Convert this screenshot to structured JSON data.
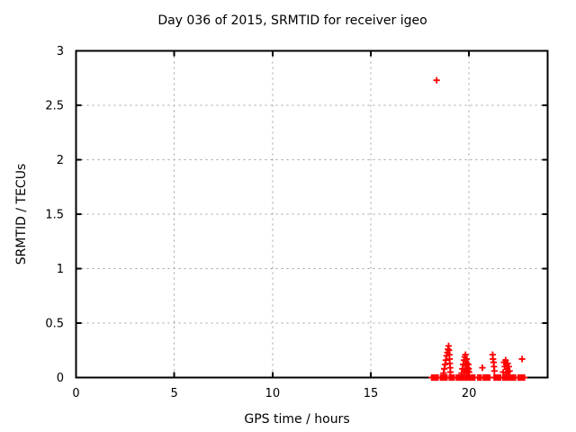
{
  "chart_data": {
    "type": "scatter",
    "title": "Day 036 of 2015, SRMTID for receiver igeo",
    "xlabel": "GPS time / hours",
    "ylabel": "SRMTID / TECUs",
    "xlim": [
      0,
      24
    ],
    "ylim": [
      0,
      3
    ],
    "xticks": [
      0,
      5,
      10,
      15,
      20
    ],
    "yticks": [
      0,
      0.5,
      1,
      1.5,
      2,
      2.5,
      3
    ],
    "grid": true,
    "legend_position": "none",
    "series": [
      {
        "name": "SRMTID",
        "marker": "plus",
        "color": "#ff0000",
        "points": [
          [
            18.35,
            2.73
          ],
          [
            18.1,
            0
          ],
          [
            18.18,
            0
          ],
          [
            18.26,
            0
          ],
          [
            18.34,
            0
          ],
          [
            18.42,
            0
          ],
          [
            18.55,
            0
          ],
          [
            18.63,
            0
          ],
          [
            18.71,
            0
          ],
          [
            18.79,
            0
          ],
          [
            18.87,
            0
          ],
          [
            19.0,
            0
          ],
          [
            19.08,
            0
          ],
          [
            19.16,
            0
          ],
          [
            19.24,
            0
          ],
          [
            19.36,
            0
          ],
          [
            19.44,
            0
          ],
          [
            19.52,
            0
          ],
          [
            19.6,
            0
          ],
          [
            19.68,
            0
          ],
          [
            19.76,
            0
          ],
          [
            19.84,
            0
          ],
          [
            19.92,
            0
          ],
          [
            20.0,
            0
          ],
          [
            20.05,
            0
          ],
          [
            20.13,
            0
          ],
          [
            20.21,
            0
          ],
          [
            20.29,
            0
          ],
          [
            20.45,
            0
          ],
          [
            20.53,
            0
          ],
          [
            20.61,
            0
          ],
          [
            20.73,
            0
          ],
          [
            20.81,
            0
          ],
          [
            20.89,
            0
          ],
          [
            20.97,
            0
          ],
          [
            21.05,
            0
          ],
          [
            21.28,
            0
          ],
          [
            21.36,
            0
          ],
          [
            21.44,
            0
          ],
          [
            21.52,
            0
          ],
          [
            21.6,
            0
          ],
          [
            21.72,
            0
          ],
          [
            21.8,
            0
          ],
          [
            21.88,
            0
          ],
          [
            21.96,
            0
          ],
          [
            22.04,
            0
          ],
          [
            22.12,
            0
          ],
          [
            22.2,
            0
          ],
          [
            22.28,
            0
          ],
          [
            22.36,
            0
          ],
          [
            22.5,
            0
          ],
          [
            22.58,
            0
          ],
          [
            22.66,
            0
          ],
          [
            22.74,
            0
          ],
          [
            22.82,
            0
          ],
          [
            18.7,
            0.04
          ],
          [
            18.74,
            0.08
          ],
          [
            18.78,
            0.12
          ],
          [
            18.82,
            0.16
          ],
          [
            18.86,
            0.2
          ],
          [
            18.9,
            0.23
          ],
          [
            18.93,
            0.26
          ],
          [
            18.96,
            0.29
          ],
          [
            18.98,
            0.25
          ],
          [
            19.0,
            0.21
          ],
          [
            19.01,
            0.17
          ],
          [
            19.02,
            0.13
          ],
          [
            19.04,
            0.09
          ],
          [
            19.05,
            0.05
          ],
          [
            19.62,
            0.04
          ],
          [
            19.66,
            0.08
          ],
          [
            19.7,
            0.12
          ],
          [
            19.74,
            0.16
          ],
          [
            19.78,
            0.19
          ],
          [
            19.82,
            0.21
          ],
          [
            19.84,
            0.15
          ],
          [
            19.86,
            0.11
          ],
          [
            19.88,
            0.17
          ],
          [
            19.9,
            0.13
          ],
          [
            19.92,
            0.09
          ],
          [
            19.94,
            0.06
          ],
          [
            19.96,
            0.12
          ],
          [
            19.98,
            0.08
          ],
          [
            20.0,
            0.05
          ],
          [
            19.8,
            0.07
          ],
          [
            19.76,
            0.05
          ],
          [
            19.86,
            0.05
          ],
          [
            20.68,
            0.09
          ],
          [
            21.2,
            0.21
          ],
          [
            21.22,
            0.17
          ],
          [
            21.25,
            0.14
          ],
          [
            21.27,
            0.1
          ],
          [
            21.29,
            0.06
          ],
          [
            21.74,
            0.05
          ],
          [
            21.78,
            0.14
          ],
          [
            21.82,
            0.1
          ],
          [
            21.86,
            0.16
          ],
          [
            21.9,
            0.12
          ],
          [
            21.94,
            0.08
          ],
          [
            21.98,
            0.05
          ],
          [
            22.02,
            0.1
          ],
          [
            22.06,
            0.06
          ],
          [
            21.88,
            0.04
          ],
          [
            21.96,
            0.13
          ],
          [
            22.7,
            0.17
          ]
        ]
      }
    ]
  },
  "style": {
    "background": "#ffffff",
    "text_color": "#000000",
    "border_color": "#000000",
    "grid_color": "#a0a0a0",
    "marker_color": "#ff0000"
  }
}
